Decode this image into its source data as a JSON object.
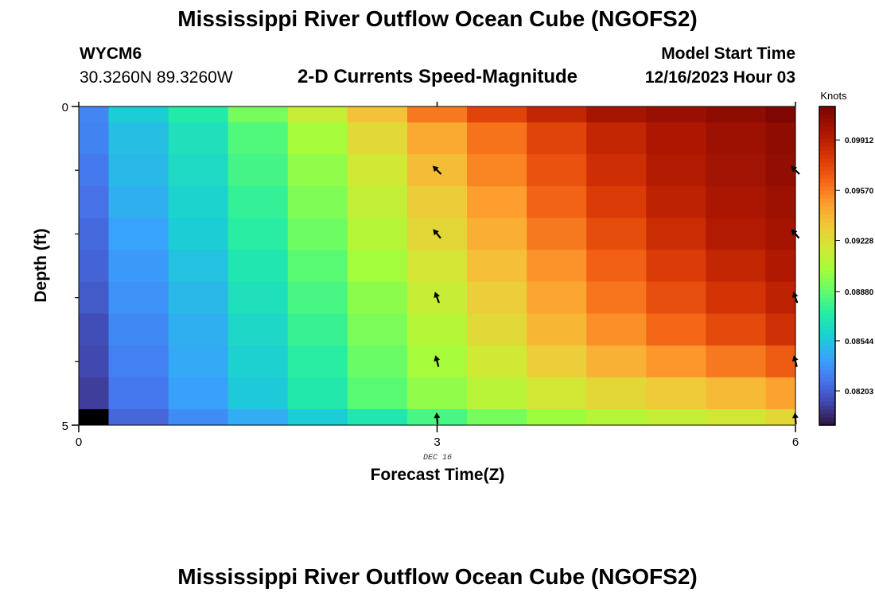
{
  "header": {
    "title": "Mississippi River Outflow Ocean Cube (NGOFS2)",
    "station_id": "WYCM6",
    "station_coords": "30.3260N  89.3260W",
    "plot_title": "2-D Currents Speed-Magnitude",
    "model_start_label": "Model Start Time",
    "model_start_value": "12/16/2023 Hour 03"
  },
  "footer": {
    "title": "Mississippi River Outflow Ocean Cube (NGOFS2)"
  },
  "chart_data": {
    "type": "heatmap",
    "xlabel": "Forecast Time(Z)",
    "ylabel": "Depth (ft)",
    "xlim": [
      0,
      6
    ],
    "ylim": [
      0,
      5
    ],
    "x_ticks": [
      "0",
      "3",
      "6"
    ],
    "x_tick_values": [
      0,
      3,
      6
    ],
    "y_ticks": [
      "0",
      "5"
    ],
    "y_tick_values": [
      0,
      5
    ],
    "date_label": "DEC 16",
    "colorbar": {
      "unit": "Knots",
      "ticks": [
        "0.08203",
        "0.08544",
        "0.08880",
        "0.09228",
        "0.09570",
        "0.09912"
      ],
      "tick_values": [
        0.08203,
        0.08544,
        0.0888,
        0.09228,
        0.0957,
        0.09912
      ],
      "range": [
        0.0797,
        0.1014
      ]
    },
    "x_edges": [
      0,
      0.25,
      0.75,
      1.25,
      1.75,
      2.25,
      2.75,
      3.25,
      3.75,
      4.25,
      4.75,
      5.25,
      5.75,
      6.0
    ],
    "y_edges": [
      0,
      0.25,
      0.75,
      1.25,
      1.75,
      2.25,
      2.75,
      3.25,
      3.75,
      4.25,
      4.75,
      5.0
    ],
    "rows": [
      [
        0.0833,
        0.0857,
        0.0872,
        0.0893,
        0.0915,
        0.0935,
        0.0958,
        0.0975,
        0.0988,
        0.0998,
        0.1003,
        0.1007,
        0.1012
      ],
      [
        0.0832,
        0.0852,
        0.0866,
        0.0884,
        0.0904,
        0.0925,
        0.0944,
        0.096,
        0.0975,
        0.0988,
        0.0996,
        0.1002,
        0.1007
      ],
      [
        0.0829,
        0.085,
        0.0863,
        0.0881,
        0.0899,
        0.0918,
        0.0937,
        0.0955,
        0.097,
        0.0984,
        0.0994,
        0.1,
        0.1005
      ],
      [
        0.0826,
        0.0847,
        0.086,
        0.0877,
        0.0895,
        0.0913,
        0.0931,
        0.0948,
        0.0964,
        0.0978,
        0.099,
        0.0997,
        0.1002
      ],
      [
        0.0824,
        0.0843,
        0.0857,
        0.0874,
        0.0891,
        0.0909,
        0.0926,
        0.0942,
        0.0958,
        0.0972,
        0.0985,
        0.0994,
        0.0999
      ],
      [
        0.0822,
        0.084,
        0.0853,
        0.087,
        0.0886,
        0.0903,
        0.092,
        0.0936,
        0.0951,
        0.0965,
        0.0978,
        0.0988,
        0.0995
      ],
      [
        0.0819,
        0.0837,
        0.085,
        0.0866,
        0.0882,
        0.0898,
        0.0915,
        0.093,
        0.0945,
        0.0959,
        0.0971,
        0.0981,
        0.099
      ],
      [
        0.0815,
        0.0834,
        0.0847,
        0.0862,
        0.0878,
        0.0894,
        0.0909,
        0.0925,
        0.0939,
        0.0952,
        0.0963,
        0.0973,
        0.0983
      ],
      [
        0.0813,
        0.0831,
        0.0845,
        0.0859,
        0.0874,
        0.089,
        0.0904,
        0.0918,
        0.093,
        0.0941,
        0.095,
        0.0958,
        0.0967
      ],
      [
        0.081,
        0.0828,
        0.0842,
        0.0856,
        0.0871,
        0.0886,
        0.0899,
        0.091,
        0.0919,
        0.0926,
        0.0932,
        0.0938,
        0.0946
      ],
      [
        0.079,
        0.0823,
        0.0835,
        0.0846,
        0.0857,
        0.087,
        0.0882,
        0.0893,
        0.0902,
        0.0909,
        0.0914,
        0.0919,
        0.0926
      ]
    ],
    "vectors": [
      {
        "x": 3,
        "y": 1.0,
        "angle_deg": -45
      },
      {
        "x": 3,
        "y": 2.0,
        "angle_deg": -40
      },
      {
        "x": 3,
        "y": 3.0,
        "angle_deg": -20
      },
      {
        "x": 3,
        "y": 4.0,
        "angle_deg": -15
      },
      {
        "x": 3,
        "y": 4.9,
        "angle_deg": -5
      },
      {
        "x": 6,
        "y": 1.0,
        "angle_deg": -45
      },
      {
        "x": 6,
        "y": 2.0,
        "angle_deg": -40
      },
      {
        "x": 6,
        "y": 3.0,
        "angle_deg": -20
      },
      {
        "x": 6,
        "y": 4.0,
        "angle_deg": -15
      },
      {
        "x": 6,
        "y": 4.9,
        "angle_deg": -5
      }
    ]
  }
}
